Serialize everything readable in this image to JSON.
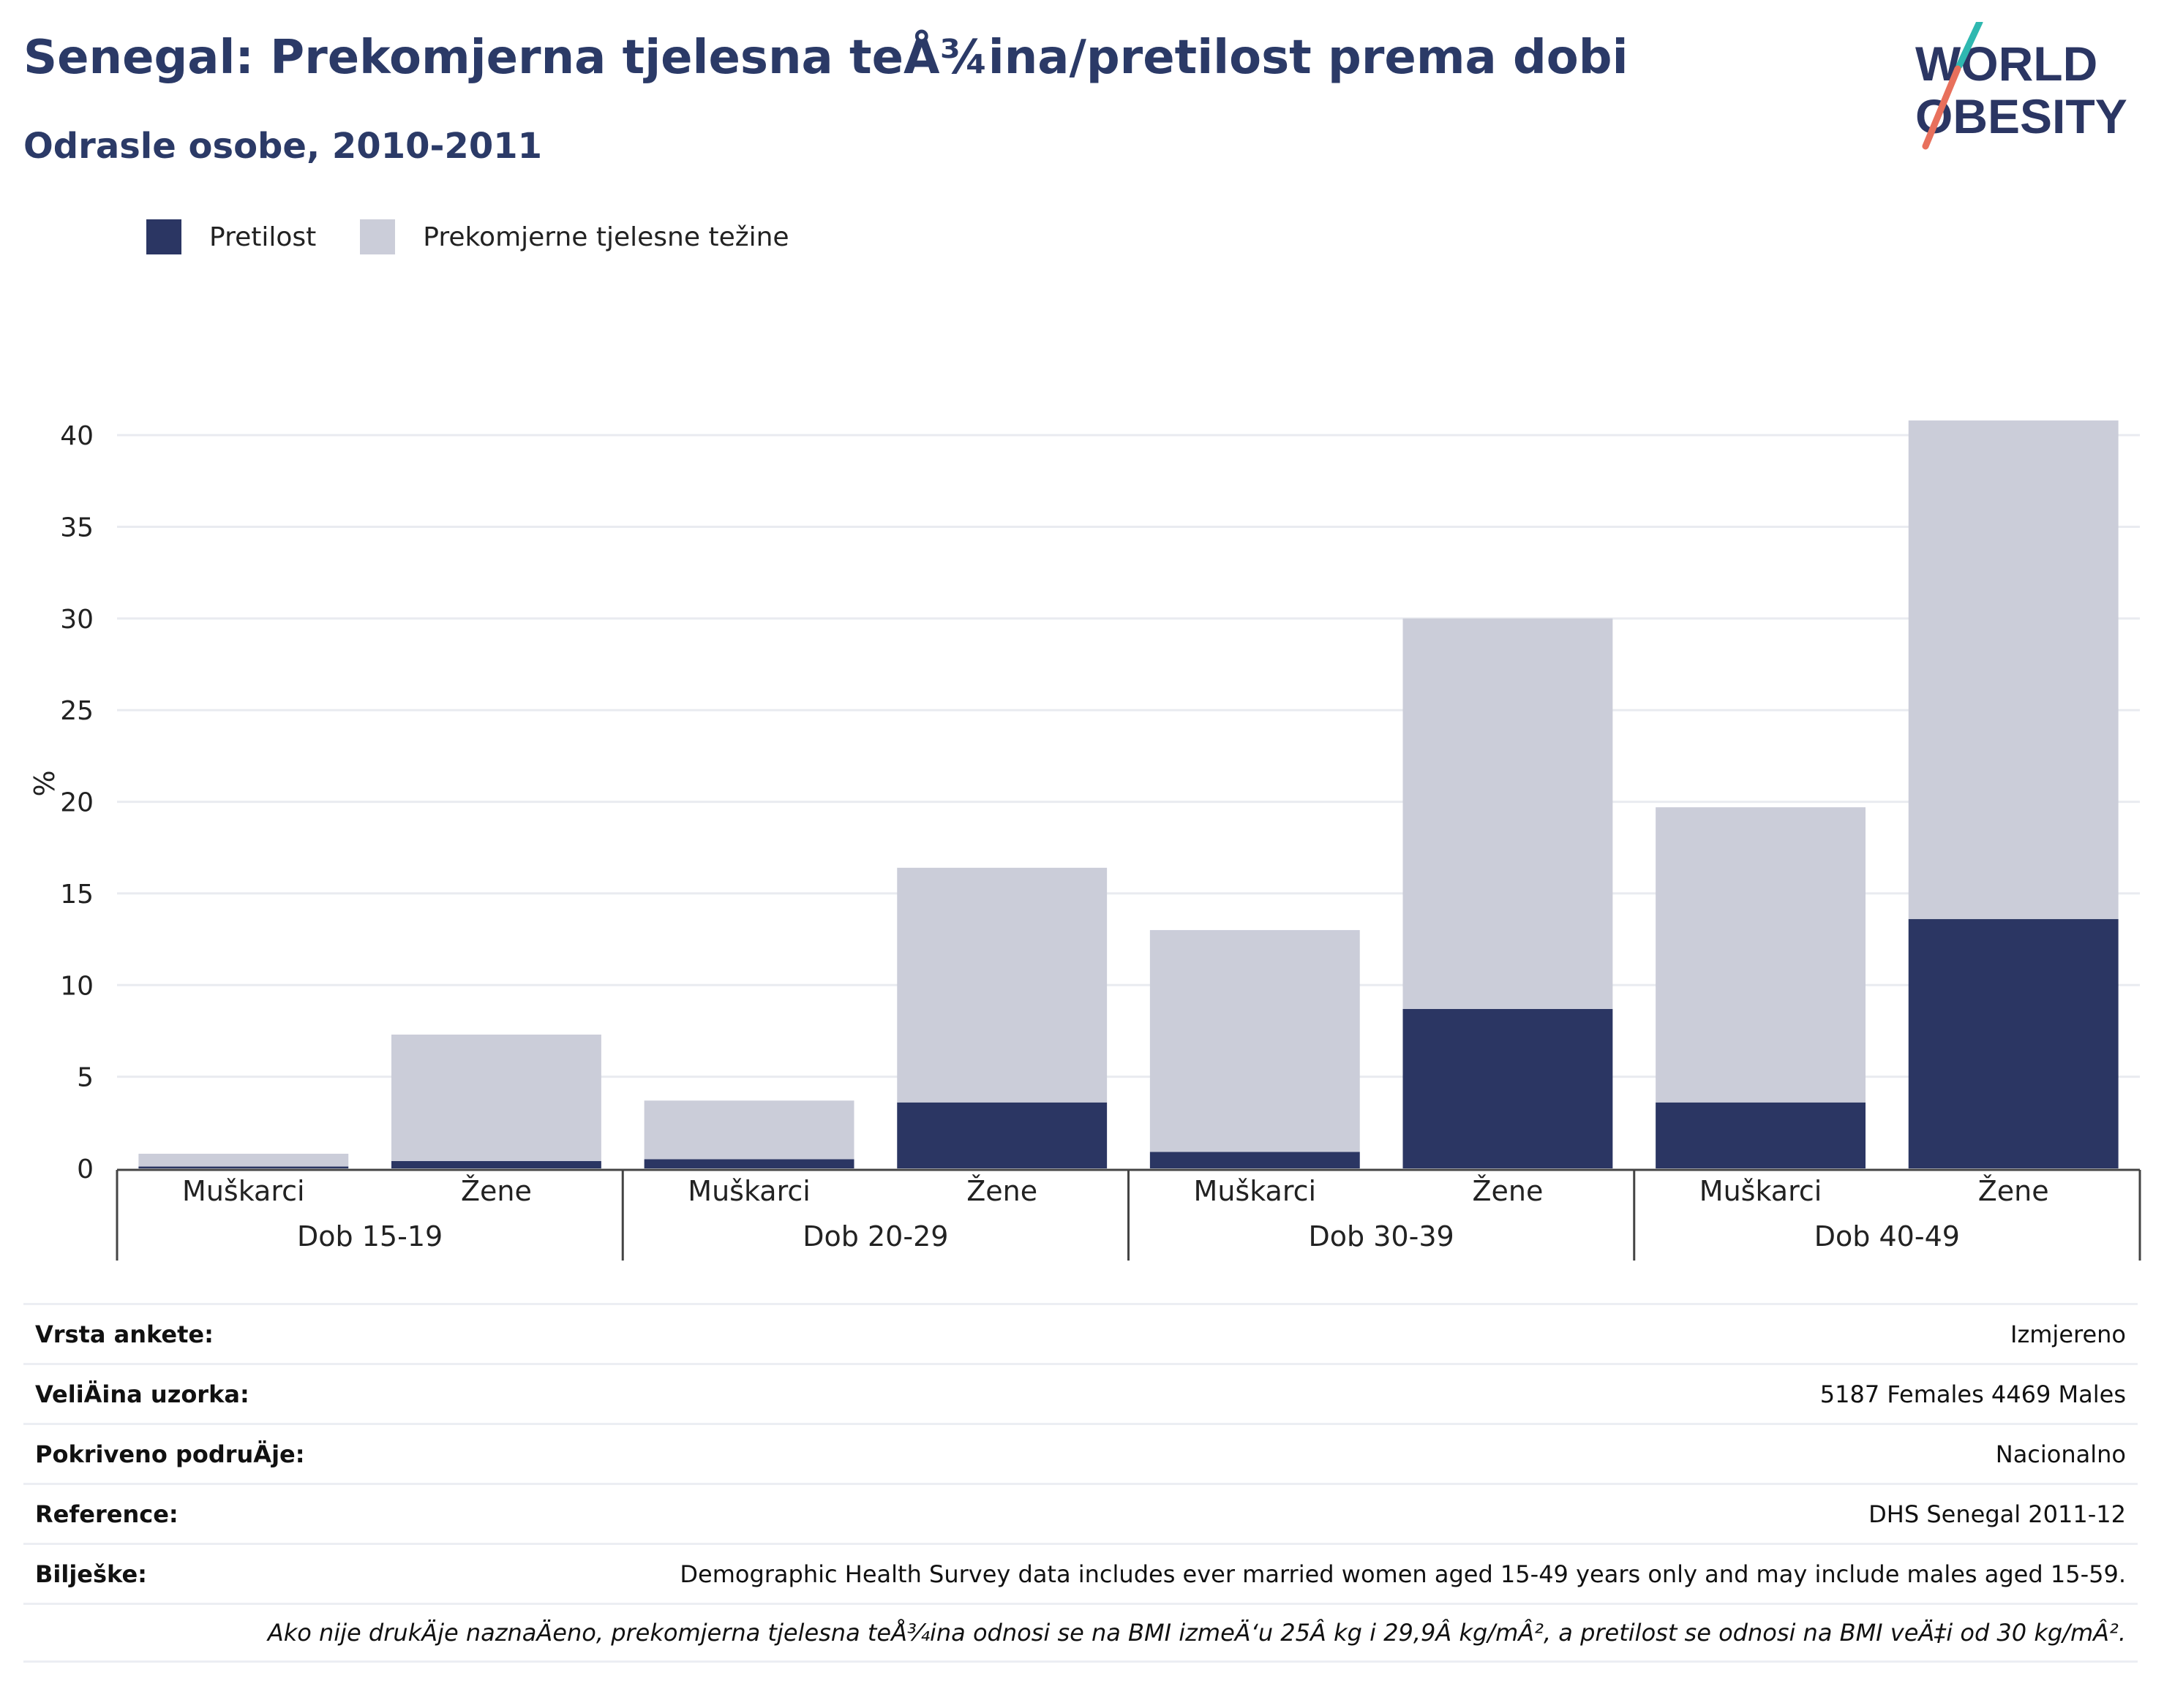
{
  "header": {
    "title": "Senegal: Prekomjerna tjelesna teÅ¾ina/pretilost prema dobi",
    "subtitle": "Odrasle osobe, 2010-2011"
  },
  "logo": {
    "line1": "WORLD",
    "line2": "OBESITY"
  },
  "legend": [
    {
      "label": "Pretilost",
      "color": "#2b3663"
    },
    {
      "label": "Prekomjerne tjelesne težine",
      "color": "#cbcdd9"
    }
  ],
  "chart_data": {
    "type": "bar",
    "stacked": true,
    "ylabel": "%",
    "ylim": [
      0,
      42
    ],
    "yticks": [
      0,
      5,
      10,
      15,
      20,
      25,
      30,
      35,
      40
    ],
    "grid": true,
    "legend_position": "top-left",
    "groups": [
      "Dob 15-19",
      "Dob 20-29",
      "Dob 30-39",
      "Dob 40-49"
    ],
    "categories": [
      "Muškarci",
      "Žene",
      "Muškarci",
      "Žene",
      "Muškarci",
      "Žene",
      "Muškarci",
      "Žene"
    ],
    "series": [
      {
        "name": "Pretilost",
        "color": "#2b3663",
        "values": [
          0.1,
          0.4,
          0.5,
          3.6,
          0.9,
          8.7,
          3.6,
          13.6
        ]
      },
      {
        "name": "Prekomjerne tjelesne težine",
        "color": "#cbcdd9",
        "values": [
          0.7,
          6.9,
          3.2,
          12.8,
          12.1,
          21.3,
          16.1,
          27.2
        ]
      }
    ]
  },
  "meta": {
    "rows": [
      {
        "label": "Vrsta ankete:",
        "value": "Izmjereno"
      },
      {
        "label": "VeliÄ\u001dina uzorka:",
        "value": "5187 Females 4469 Males"
      },
      {
        "label": "Pokriveno podruÄ\u001dje:",
        "value": "Nacionalno"
      },
      {
        "label": "Reference:",
        "value": "DHS Senegal 2011-12"
      },
      {
        "label": "Bilješke:",
        "value": "Demographic Health Survey data includes ever married women aged 15-49 years only and may include males aged 15-59."
      }
    ],
    "footnote": "Ako nije drukÄ\u001dje naznaÄ\u001deno, prekomjerna tjelesna teÅ¾ina odnosi se na BMI izmeÄ‘u 25Â kg i 29,9Â kg/mÂ², a pretilost se odnosi na BMI veÄ‡i od 30 kg/mÂ²."
  }
}
